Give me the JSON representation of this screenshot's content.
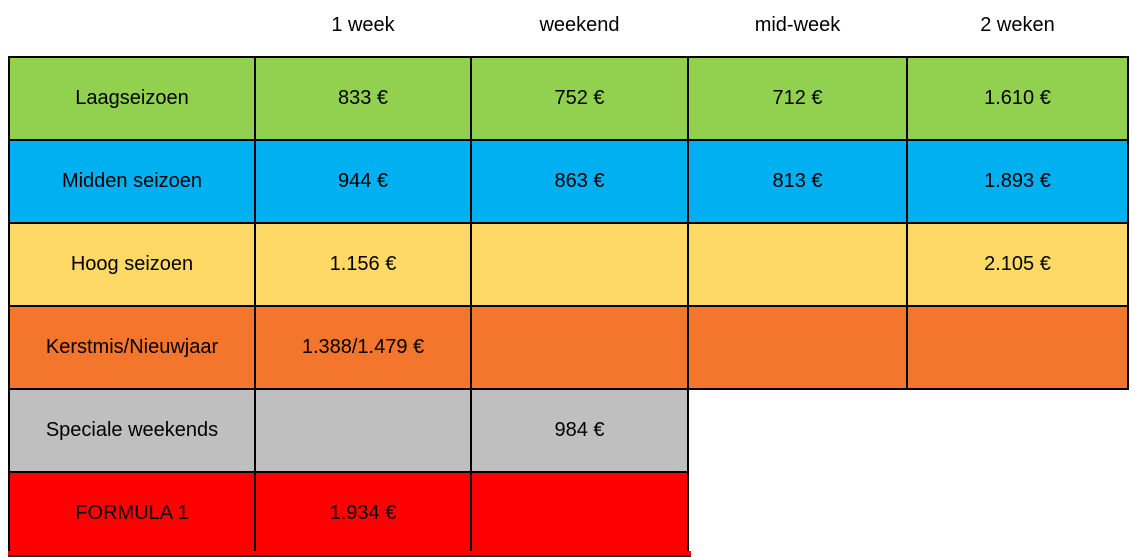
{
  "page": {
    "background": "#ffffff",
    "border_color": "#000000",
    "text_color": "#000000"
  },
  "table": {
    "columns": [
      "1 week",
      "weekend",
      "mid-week",
      "2 weken"
    ],
    "rows": [
      {
        "label": "Laagseizoen",
        "color": "#92D050",
        "values": [
          "833 €",
          "752 €",
          "712 €",
          "1.610 €"
        ]
      },
      {
        "label": "Midden seizoen",
        "color": "#00B0F0",
        "values": [
          "944 €",
          "863 €",
          "813 €",
          "1.893 €"
        ]
      },
      {
        "label": "Hoog seizoen",
        "color": "#FFD966",
        "values": [
          "1.156 €",
          "",
          "",
          "2.105 €"
        ]
      },
      {
        "label": "Kerstmis/Nieuwjaar",
        "color": "#F4762C",
        "values": [
          "1.388/1.479 €",
          "",
          "",
          ""
        ]
      },
      {
        "label": "Speciale weekends",
        "color": "#BFBFBF",
        "values": [
          "",
          "984 €"
        ]
      },
      {
        "label": "FORMULA 1",
        "color": "#FF0000",
        "values": [
          "1.934 €",
          ""
        ]
      }
    ]
  }
}
